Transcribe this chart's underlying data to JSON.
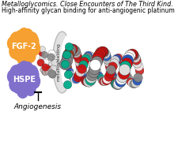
{
  "title1": "Metalloglycomics. Close Encounters of The Third Kind.",
  "title2": "High-affinity glycan binding for anti-angiogenic platinum",
  "fgf2_label": "FGF-2",
  "hspe_label": "HSPE",
  "angiogenesis_label": "Angiogenesis",
  "metalloshielding_label": "metalloshielding",
  "fgf2_color": "#F5A030",
  "hspe_color": "#8070CC",
  "background_color": "#FFFFFF",
  "title1_fontsize": 5.8,
  "title2_fontsize": 5.5,
  "label_fontsize": 7.0,
  "angio_fontsize": 6.5
}
